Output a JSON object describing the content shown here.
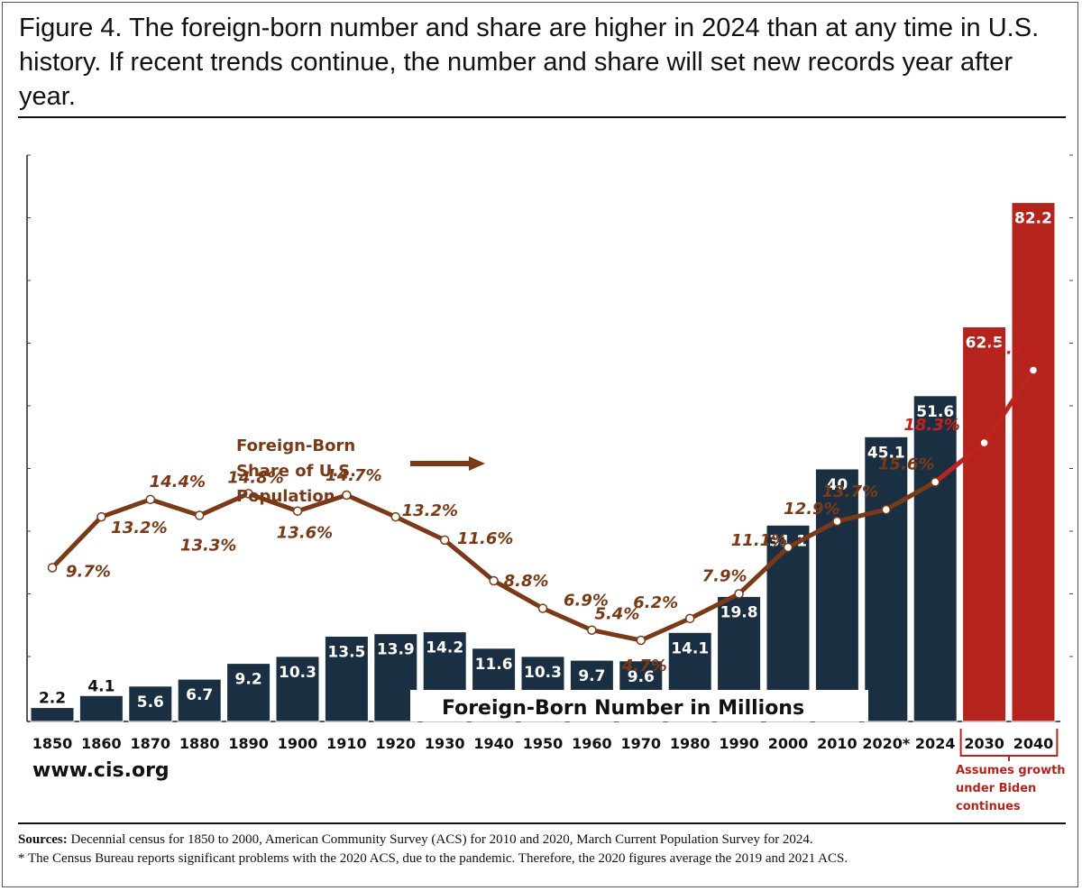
{
  "figure": {
    "title": "Figure 4. The foreign-born number and share are higher in 2024 than at any time in U.S. history. If recent trends continue, the number and share will set new records year after year.",
    "website": "www.cis.org",
    "sources_label": "Sources:",
    "sources_text": " Decennial census for 1850 to 2000, American Community Survey (ACS) for 2010 and 2020, March Current Population Survey for 2024.",
    "footnote": "* The Census Bureau reports significant problems with the 2020 ACS, due to the pandemic. Therefore, the 2020 figures average the 2019 and 2021 ACS."
  },
  "chart_data": {
    "type": "bar",
    "categories": [
      "1850",
      "1860",
      "1870",
      "1880",
      "1890",
      "1900",
      "1910",
      "1920",
      "1930",
      "1940",
      "1950",
      "1960",
      "1970",
      "1980",
      "1990",
      "2000",
      "2010",
      "2020*",
      "2024",
      "2030",
      "2040"
    ],
    "series": [
      {
        "name": "Foreign-Born Number in Millions",
        "type": "bar",
        "values": [
          2.2,
          4.1,
          5.6,
          6.7,
          9.2,
          10.3,
          13.5,
          13.9,
          14.2,
          11.6,
          10.3,
          9.7,
          9.6,
          14.1,
          19.8,
          31.1,
          40,
          45.1,
          51.6,
          62.5,
          82.2
        ],
        "labels": [
          "2.2",
          "4.1",
          "5.6",
          "6.7",
          "9.2",
          "10.3",
          "13.5",
          "13.9",
          "14.2",
          "11.6",
          "10.3",
          "9.7",
          "9.6",
          "14.1",
          "19.8",
          "31.1",
          "40",
          "45.1",
          "51.6",
          "62.5",
          "82.2"
        ]
      },
      {
        "name": "Foreign-Born Share of U.S. Population",
        "type": "line",
        "unit": "%",
        "values": [
          9.7,
          13.2,
          14.4,
          13.3,
          14.8,
          13.6,
          14.7,
          13.2,
          11.6,
          8.8,
          6.9,
          5.4,
          4.7,
          6.2,
          7.9,
          11.1,
          12.9,
          13.7,
          15.6,
          18.3,
          23.3
        ],
        "labels": [
          "9.7%",
          "13.2%",
          "14.4%",
          "13.3%",
          "14.8%",
          "13.6%",
          "14.7%",
          "13.2%",
          "11.6%",
          "8.8%",
          "6.9%",
          "5.4%",
          "4.7%",
          "6.2%",
          "7.9%",
          "11.1%",
          "12.9%",
          "13.7%",
          "15.6%",
          "18.3%",
          "23.3%"
        ]
      }
    ],
    "projected_categories": [
      "2030",
      "2040"
    ],
    "projection_note": "Assumes growth under Biden continues",
    "bar_legend": "Foreign-Born Number in Millions",
    "line_legend": [
      "Foreign-Born",
      "Share of U.S.",
      "Population"
    ],
    "grid": false,
    "colors": {
      "bar": "#1b2f42",
      "bar_projected": "#b4231c",
      "line": "#7a3a17",
      "line_projected": "#c0231d",
      "line_label": "#7a3a17",
      "line_label_projected": "#c0231d"
    }
  }
}
